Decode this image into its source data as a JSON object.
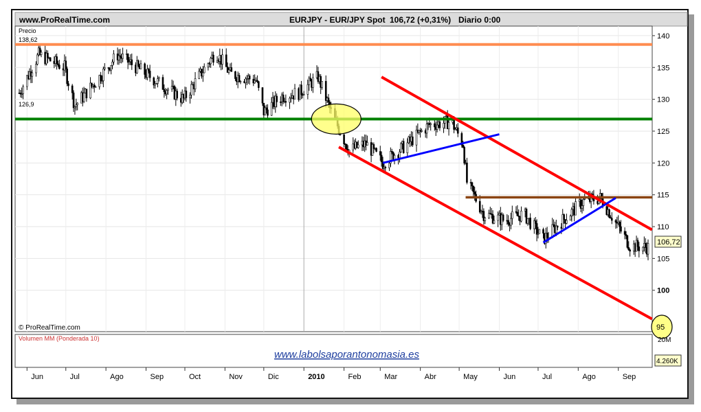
{
  "header": {
    "site": "www.ProRealTime.com",
    "symbol": "EURJPY - EUR/JPY Spot",
    "last": "106,72 (+0,31%)",
    "period": "Diario  0:00"
  },
  "price_panel": {
    "label": "Precio",
    "watermark": "© ProRealTime.com",
    "current_price_tag": "106,72",
    "circle_label": "95"
  },
  "volume_panel": {
    "label": "Volumen MM (Ponderada 10)",
    "axis_label": "20M",
    "volume_tag": "4.260K",
    "link": "www.labolsaporantonomasia.es"
  },
  "colors": {
    "resistance": "#ff8c50",
    "support": "#008000",
    "channel": "#ff0000",
    "triangle": "#0000ff",
    "breakout": "#8b4513",
    "highlight": "#ffff66",
    "candles": "#000000"
  },
  "chart_data": {
    "type": "candlestick",
    "x_ticks": [
      "Jun",
      "Jul",
      "Ago",
      "Sep",
      "Oct",
      "Nov",
      "Dic",
      "2010",
      "Feb",
      "Mar",
      "Abr",
      "May",
      "Jun",
      "Jul",
      "Ago",
      "Sep"
    ],
    "y_ticks": [
      140,
      135,
      130,
      125,
      120,
      115,
      110,
      105,
      100
    ],
    "ylim": [
      93.5,
      141.5
    ],
    "x_range": [
      "2009-05-26",
      "2010-09-24"
    ],
    "series": [
      {
        "x": "2009-05-26",
        "y": 131
      },
      {
        "x": "2009-06-10",
        "y": 137
      },
      {
        "x": "2009-06-30",
        "y": 135
      },
      {
        "x": "2009-07-08",
        "y": 129
      },
      {
        "x": "2009-07-25",
        "y": 133
      },
      {
        "x": "2009-08-10",
        "y": 137
      },
      {
        "x": "2009-08-25",
        "y": 135
      },
      {
        "x": "2009-09-15",
        "y": 132
      },
      {
        "x": "2009-09-30",
        "y": 130
      },
      {
        "x": "2009-10-10",
        "y": 133
      },
      {
        "x": "2009-10-25",
        "y": 137.5
      },
      {
        "x": "2009-11-05",
        "y": 134
      },
      {
        "x": "2009-11-25",
        "y": 133
      },
      {
        "x": "2009-12-01",
        "y": 128
      },
      {
        "x": "2009-12-15",
        "y": 130.5
      },
      {
        "x": "2009-12-28",
        "y": 131
      },
      {
        "x": "2010-01-12",
        "y": 133.5
      },
      {
        "x": "2010-01-22",
        "y": 128
      },
      {
        "x": "2010-02-05",
        "y": 122
      },
      {
        "x": "2010-02-18",
        "y": 123
      },
      {
        "x": "2010-03-03",
        "y": 120
      },
      {
        "x": "2010-03-22",
        "y": 123
      },
      {
        "x": "2010-04-08",
        "y": 126
      },
      {
        "x": "2010-04-25",
        "y": 126.5
      },
      {
        "x": "2010-05-04",
        "y": 123
      },
      {
        "x": "2010-05-07",
        "y": 117
      },
      {
        "x": "2010-05-20",
        "y": 112
      },
      {
        "x": "2010-06-05",
        "y": 111
      },
      {
        "x": "2010-06-20",
        "y": 112
      },
      {
        "x": "2010-07-05",
        "y": 108
      },
      {
        "x": "2010-07-20",
        "y": 111
      },
      {
        "x": "2010-08-05",
        "y": 114
      },
      {
        "x": "2010-08-18",
        "y": 114.5
      },
      {
        "x": "2010-08-26",
        "y": 112
      },
      {
        "x": "2010-09-10",
        "y": 107
      },
      {
        "x": "2010-09-24",
        "y": 106.72
      }
    ],
    "annotations": {
      "resistance_level": 138.62,
      "support_level": 126.9,
      "breakout_level": 114.6,
      "channel_upper": [
        {
          "x": "2010-03-02",
          "y": 133.5
        },
        {
          "x": "2010-09-27",
          "y": 109.5
        }
      ],
      "channel_lower": [
        {
          "x": "2010-01-28",
          "y": 122.5
        },
        {
          "x": "2010-09-27",
          "y": 95.5
        }
      ],
      "triangle_lower_1": [
        {
          "x": "2010-03-03",
          "y": 120
        },
        {
          "x": "2010-06-01",
          "y": 124.5
        }
      ],
      "triangle_lower_2": [
        {
          "x": "2010-07-05",
          "y": 107.5
        },
        {
          "x": "2010-08-30",
          "y": 114.5
        }
      ]
    }
  }
}
